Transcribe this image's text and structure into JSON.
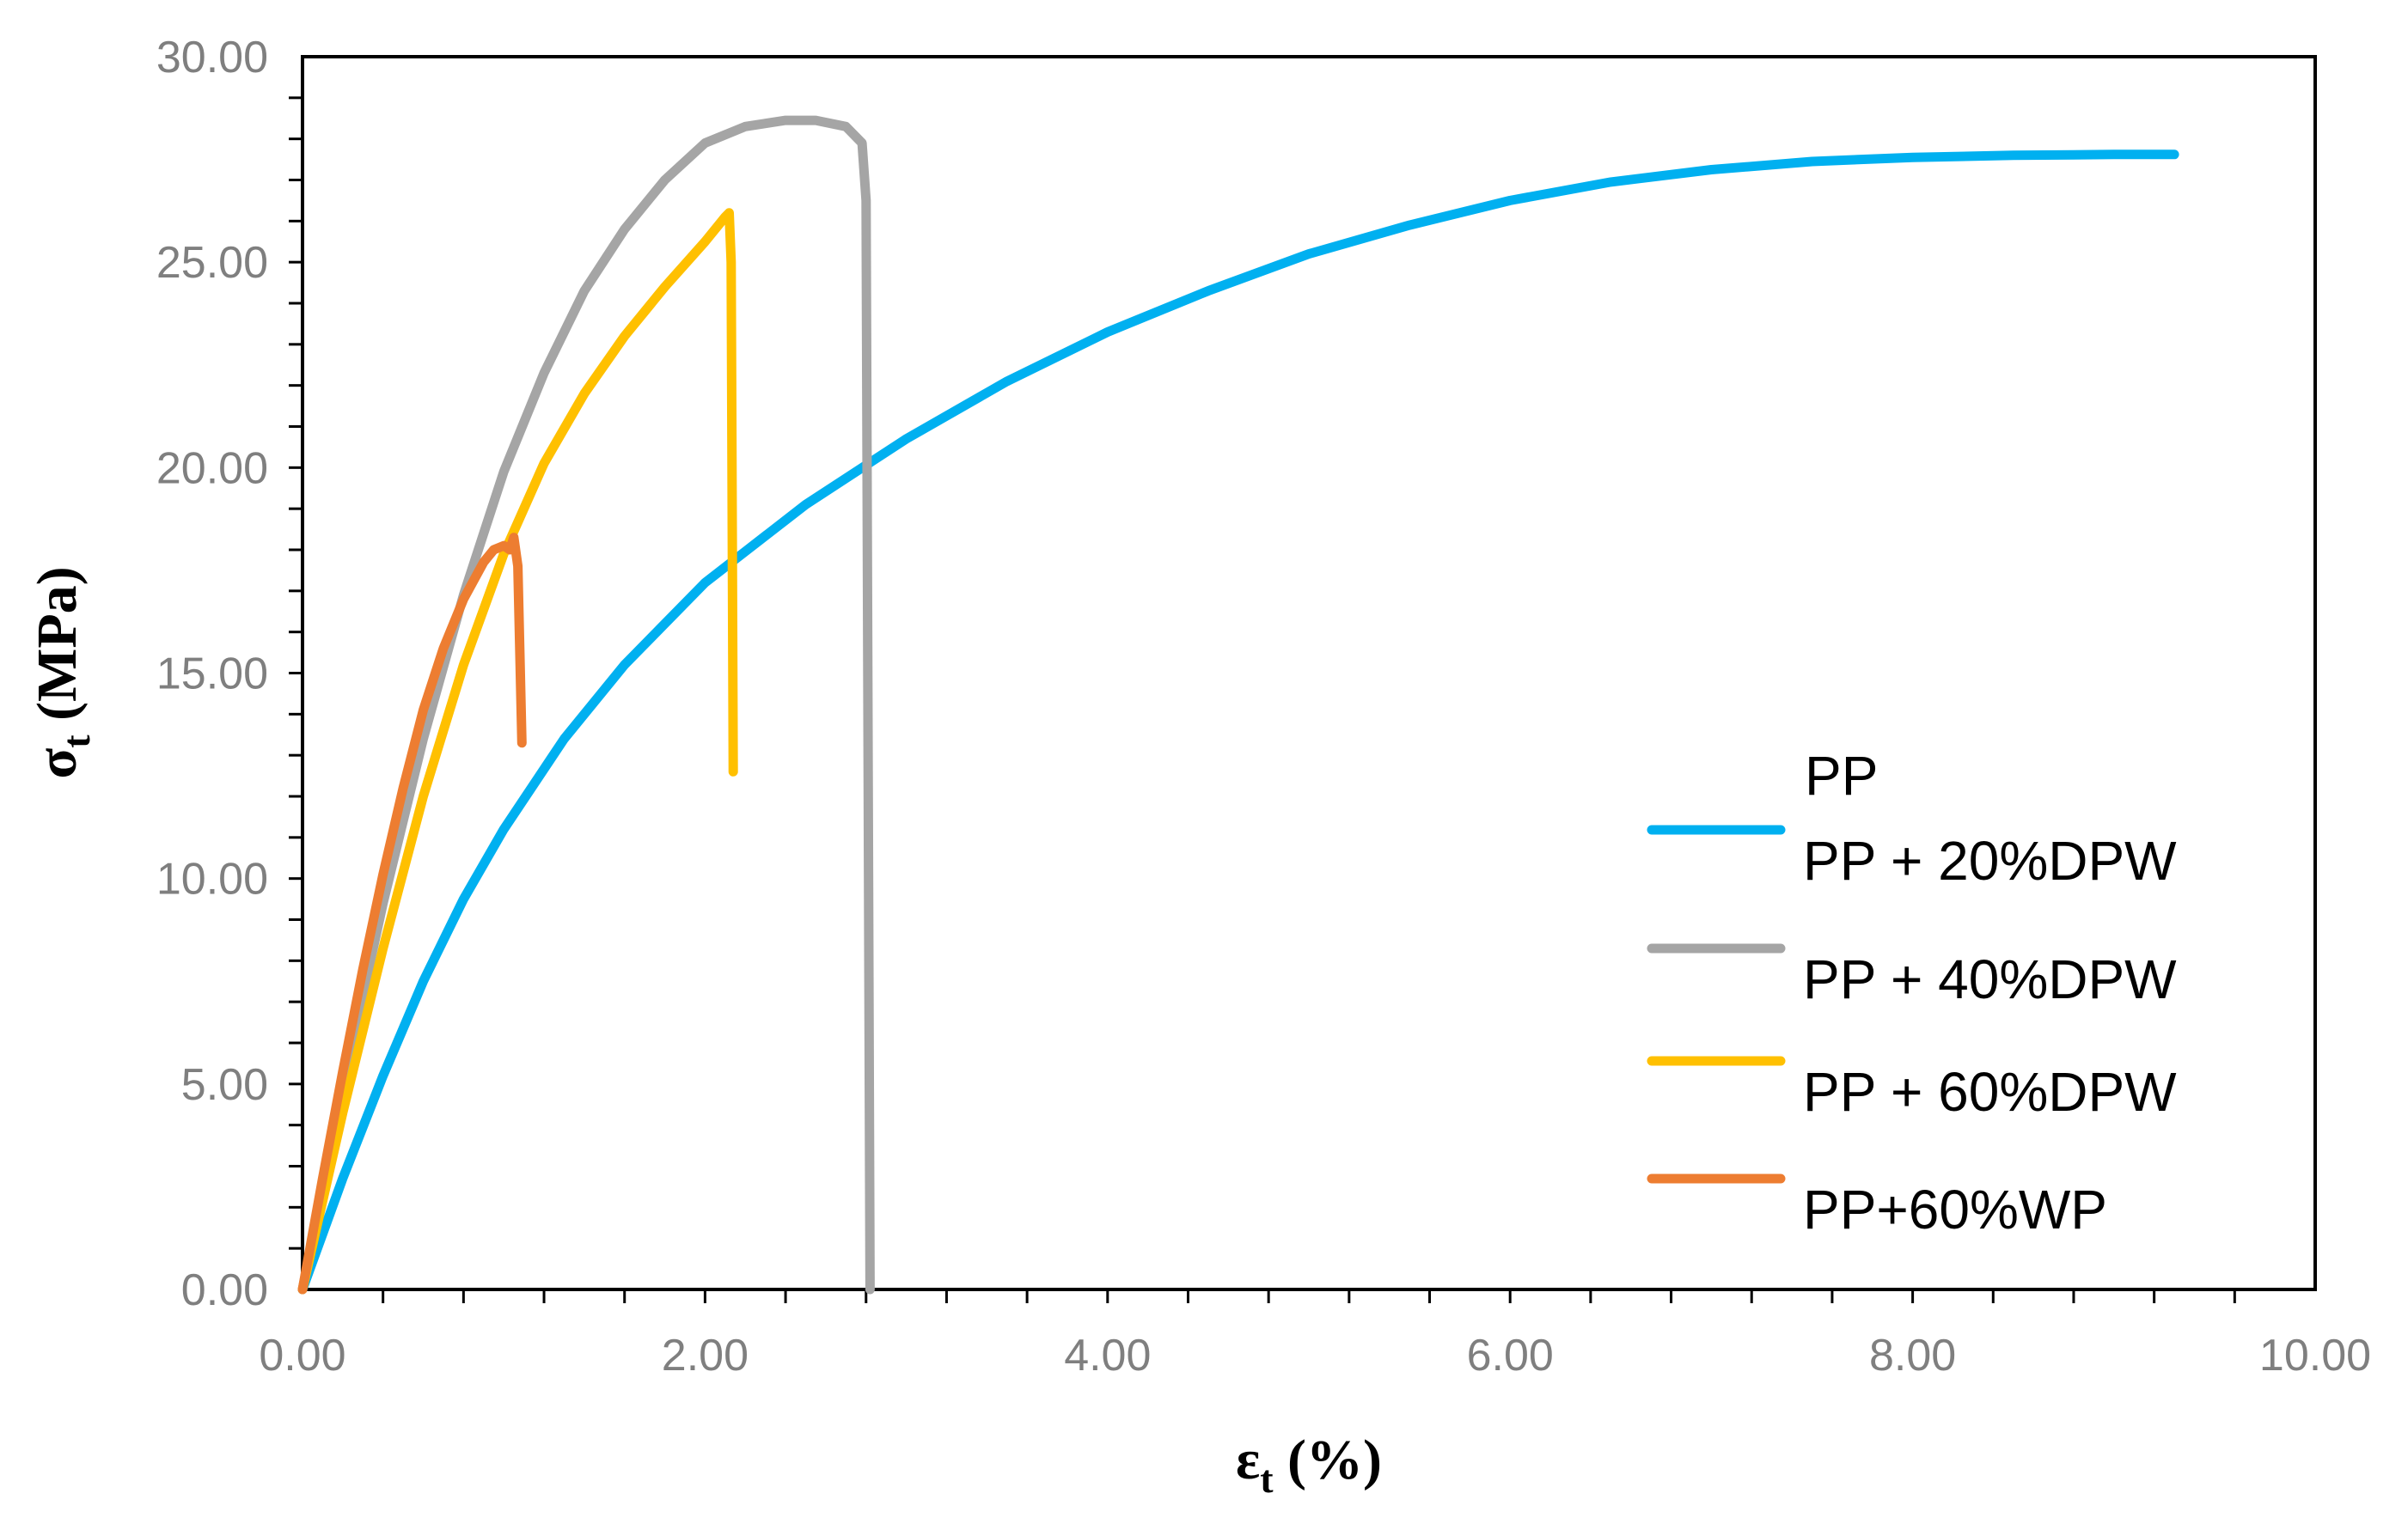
{
  "chart_data": {
    "type": "line",
    "title": "",
    "xlabel": {
      "symbol": "ε",
      "sub": "t",
      "unit": " (%)"
    },
    "ylabel": {
      "symbol": "σ",
      "sub": "t",
      "unit": " (MPa)"
    },
    "xlim": [
      0,
      10
    ],
    "ylim": [
      0,
      30
    ],
    "xticks": [
      "0.00",
      "2.00",
      "4.00",
      "6.00",
      "8.00",
      "10.00"
    ],
    "yticks": [
      "0.00",
      "5.00",
      "10.00",
      "15.00",
      "20.00",
      "25.00",
      "30.00"
    ],
    "x_minor_step": 0.4,
    "y_minor_step": 1,
    "grid": false,
    "legend_position": "right",
    "legend_header": "PP",
    "series": [
      {
        "name": "PP + 20%DPW",
        "color": "#00B0F0",
        "x": [
          0,
          0.2,
          0.4,
          0.6,
          0.8,
          1.0,
          1.3,
          1.6,
          2.0,
          2.5,
          3.0,
          3.5,
          4.0,
          4.5,
          5.0,
          5.5,
          6.0,
          6.5,
          7.0,
          7.5,
          8.0,
          8.5,
          9.0,
          9.3
        ],
        "y": [
          0,
          2.7,
          5.2,
          7.5,
          9.5,
          11.2,
          13.4,
          15.2,
          17.2,
          19.1,
          20.7,
          22.1,
          23.3,
          24.3,
          25.2,
          25.9,
          26.5,
          26.95,
          27.25,
          27.45,
          27.55,
          27.6,
          27.62,
          27.62
        ]
      },
      {
        "name": "PP + 40%DPW",
        "color": "#A5A5A5",
        "x": [
          0,
          0.2,
          0.4,
          0.6,
          0.8,
          1.0,
          1.2,
          1.4,
          1.6,
          1.8,
          2.0,
          2.2,
          2.4,
          2.55,
          2.7,
          2.78,
          2.8,
          2.82
        ],
        "y": [
          0,
          4.9,
          9.4,
          13.4,
          16.9,
          19.9,
          22.3,
          24.3,
          25.8,
          27.0,
          27.9,
          28.3,
          28.45,
          28.45,
          28.3,
          27.9,
          26.5,
          0
        ]
      },
      {
        "name": "PP + 60%DPW",
        "color": "#FFC000",
        "x": [
          0,
          0.2,
          0.4,
          0.6,
          0.8,
          1.0,
          1.2,
          1.4,
          1.6,
          1.8,
          2.0,
          2.1,
          2.12,
          2.13,
          2.14
        ],
        "y": [
          0,
          4.3,
          8.3,
          12.0,
          15.2,
          17.9,
          20.1,
          21.8,
          23.2,
          24.4,
          25.5,
          26.1,
          26.2,
          25.0,
          12.6
        ]
      },
      {
        "name": "PP+60%WP",
        "color": "#ED7D31",
        "x": [
          0,
          0.1,
          0.2,
          0.3,
          0.4,
          0.5,
          0.6,
          0.7,
          0.8,
          0.9,
          0.95,
          1.0,
          1.03,
          1.05,
          1.07,
          1.08,
          1.09
        ],
        "y": [
          0,
          2.7,
          5.3,
          7.8,
          10.1,
          12.2,
          14.1,
          15.6,
          16.8,
          17.7,
          18.0,
          18.1,
          18.0,
          18.3,
          17.6,
          15.5,
          13.3
        ]
      }
    ]
  }
}
